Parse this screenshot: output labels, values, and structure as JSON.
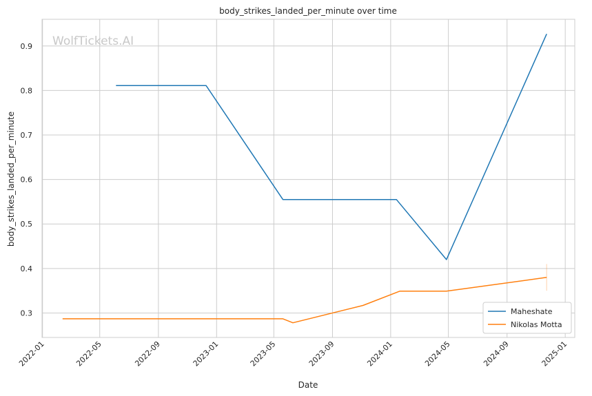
{
  "chart_data": {
    "type": "line",
    "title": "body_strikes_landed_per_minute over time",
    "xlabel": "Date",
    "ylabel": "body_strikes_landed_per_minute",
    "watermark": "WolfTickets.AI",
    "x_ticks": [
      "2022-01",
      "2022-05",
      "2022-09",
      "2023-01",
      "2023-05",
      "2023-09",
      "2024-01",
      "2024-05",
      "2024-09",
      "2025-01"
    ],
    "y_ticks": [
      0.3,
      0.4,
      0.5,
      0.6,
      0.7,
      0.8,
      0.9
    ],
    "xlim": [
      "2021-12-31",
      "2025-01-21"
    ],
    "ylim": [
      0.245,
      0.96
    ],
    "grid": true,
    "legend_position": "bottom-right",
    "series": [
      {
        "name": "Maheshate",
        "color": "#1f77b4",
        "points": [
          {
            "x": "2022-06-04",
            "y": 0.811
          },
          {
            "x": "2022-12-10",
            "y": 0.811
          },
          {
            "x": "2023-05-20",
            "y": 0.555
          },
          {
            "x": "2024-01-13",
            "y": 0.555
          },
          {
            "x": "2024-04-27",
            "y": 0.42
          },
          {
            "x": "2024-11-23",
            "y": 0.927
          }
        ]
      },
      {
        "name": "Nikolas Motta",
        "color": "#ff7f0e",
        "points": [
          {
            "x": "2022-02-12",
            "y": 0.287
          },
          {
            "x": "2023-05-20",
            "y": 0.287
          },
          {
            "x": "2023-06-10",
            "y": 0.278
          },
          {
            "x": "2023-11-04",
            "y": 0.317
          },
          {
            "x": "2024-01-20",
            "y": 0.349
          },
          {
            "x": "2024-04-27",
            "y": 0.349
          },
          {
            "x": "2024-11-23",
            "y": 0.38
          }
        ]
      }
    ]
  }
}
